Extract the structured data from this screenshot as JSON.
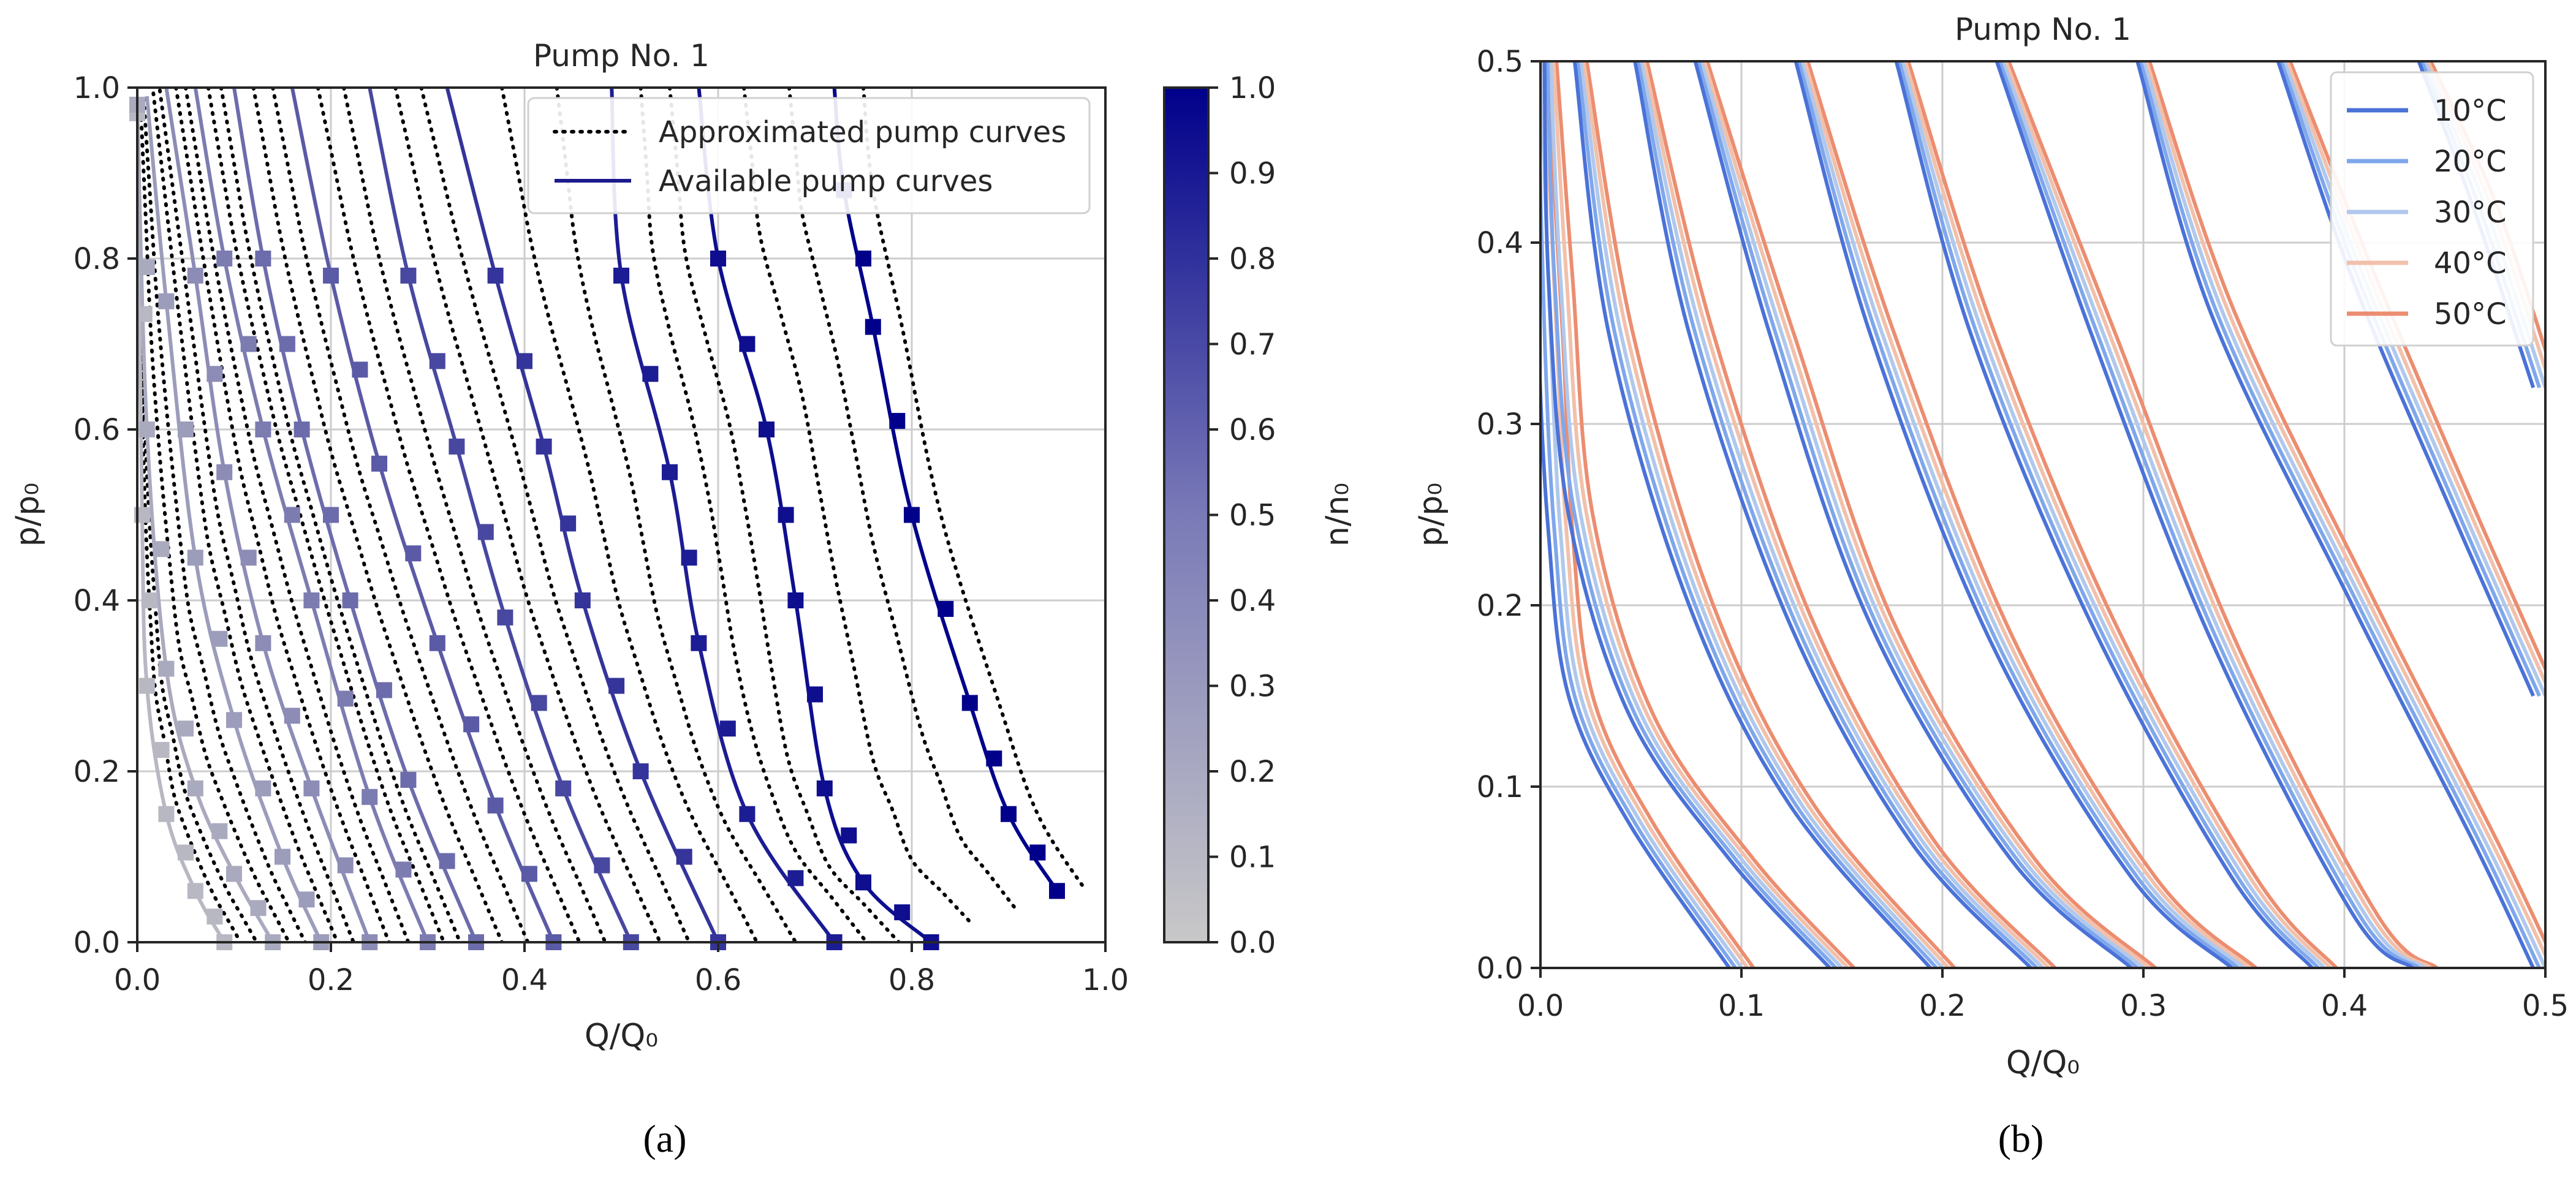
{
  "figure": {
    "panel_a_caption": "(a)",
    "panel_b_caption": "(b)"
  },
  "chart_data": [
    {
      "panel": "a",
      "type": "line",
      "title": "Pump No. 1",
      "xlabel": "Q/Q₀",
      "ylabel": "p/p₀",
      "xlim": [
        0.0,
        1.0
      ],
      "ylim": [
        0.0,
        1.0
      ],
      "xticks": [
        "0.0",
        "0.2",
        "0.4",
        "0.6",
        "0.8",
        "1.0"
      ],
      "yticks": [
        "0.0",
        "0.2",
        "0.4",
        "0.6",
        "0.8",
        "1.0"
      ],
      "grid": true,
      "legend": {
        "position": "top-right",
        "entries": [
          {
            "label": "Approximated pump curves",
            "style": "dotted",
            "color": "#000000"
          },
          {
            "label": "Available pump curves",
            "style": "solid",
            "color": "#1a1a8c"
          }
        ]
      },
      "colorbar": {
        "label": "n/n₀",
        "ticks": [
          "0.0",
          "0.1",
          "0.2",
          "0.3",
          "0.4",
          "0.5",
          "0.6",
          "0.7",
          "0.8",
          "0.9",
          "1.0"
        ],
        "range": [
          0.0,
          1.0
        ],
        "color_low": "#c8c8c8",
        "color_high": "#00008b"
      },
      "available_curves": [
        {
          "n": 0.08,
          "points": [
            [
              0.0,
              0.97
            ],
            [
              0.005,
              0.5
            ],
            [
              0.01,
              0.3
            ],
            [
              0.03,
              0.15
            ],
            [
              0.06,
              0.06
            ],
            [
              0.09,
              0.0
            ]
          ]
        },
        {
          "n": 0.15,
          "points": [
            [
              0.0,
              0.98
            ],
            [
              0.01,
              0.6
            ],
            [
              0.03,
              0.32
            ],
            [
              0.06,
              0.18
            ],
            [
              0.1,
              0.08
            ],
            [
              0.14,
              0.0
            ]
          ]
        },
        {
          "n": 0.22,
          "points": [
            [
              0.01,
              0.99
            ],
            [
              0.03,
              0.75
            ],
            [
              0.06,
              0.45
            ],
            [
              0.1,
              0.26
            ],
            [
              0.15,
              0.1
            ],
            [
              0.19,
              0.0
            ]
          ]
        },
        {
          "n": 0.3,
          "points": [
            [
              0.03,
              1.0
            ],
            [
              0.06,
              0.78
            ],
            [
              0.09,
              0.55
            ],
            [
              0.13,
              0.35
            ],
            [
              0.18,
              0.18
            ],
            [
              0.24,
              0.0
            ]
          ]
        },
        {
          "n": 0.38,
          "points": [
            [
              0.06,
              1.0
            ],
            [
              0.09,
              0.8
            ],
            [
              0.13,
              0.6
            ],
            [
              0.18,
              0.4
            ],
            [
              0.24,
              0.17
            ],
            [
              0.3,
              0.0
            ]
          ]
        },
        {
          "n": 0.46,
          "points": [
            [
              0.1,
              1.0
            ],
            [
              0.13,
              0.8
            ],
            [
              0.17,
              0.6
            ],
            [
              0.22,
              0.4
            ],
            [
              0.28,
              0.19
            ],
            [
              0.35,
              0.0
            ]
          ]
        },
        {
          "n": 0.55,
          "points": [
            [
              0.16,
              1.0
            ],
            [
              0.2,
              0.78
            ],
            [
              0.25,
              0.56
            ],
            [
              0.31,
              0.35
            ],
            [
              0.37,
              0.16
            ],
            [
              0.43,
              0.0
            ]
          ]
        },
        {
          "n": 0.64,
          "points": [
            [
              0.24,
              1.0
            ],
            [
              0.28,
              0.78
            ],
            [
              0.33,
              0.58
            ],
            [
              0.38,
              0.38
            ],
            [
              0.44,
              0.18
            ],
            [
              0.51,
              0.0
            ]
          ]
        },
        {
          "n": 0.74,
          "points": [
            [
              0.32,
              1.0
            ],
            [
              0.37,
              0.78
            ],
            [
              0.42,
              0.58
            ],
            [
              0.46,
              0.4
            ],
            [
              0.52,
              0.2
            ],
            [
              0.6,
              0.0
            ]
          ]
        },
        {
          "n": 0.86,
          "points": [
            [
              0.49,
              1.0
            ],
            [
              0.5,
              0.78
            ],
            [
              0.55,
              0.55
            ],
            [
              0.58,
              0.35
            ],
            [
              0.63,
              0.15
            ],
            [
              0.72,
              0.0
            ]
          ]
        },
        {
          "n": 0.93,
          "points": [
            [
              0.58,
              1.0
            ],
            [
              0.6,
              0.8
            ],
            [
              0.65,
              0.6
            ],
            [
              0.68,
              0.4
            ],
            [
              0.71,
              0.18
            ],
            [
              0.75,
              0.07
            ],
            [
              0.82,
              0.0
            ]
          ]
        },
        {
          "n": 1.0,
          "points": [
            [
              0.72,
              1.0
            ],
            [
              0.73,
              0.88
            ],
            [
              0.76,
              0.72
            ],
            [
              0.8,
              0.5
            ],
            [
              0.86,
              0.28
            ],
            [
              0.9,
              0.15
            ],
            [
              0.95,
              0.06
            ]
          ]
        }
      ],
      "approximated_curve_count": 26
    },
    {
      "panel": "b",
      "type": "line",
      "title": "Pump No. 1",
      "xlabel": "Q/Q₀",
      "ylabel": "p/p₀",
      "xlim": [
        0.0,
        0.5
      ],
      "ylim": [
        0.0,
        0.5
      ],
      "xticks": [
        "0.0",
        "0.1",
        "0.2",
        "0.3",
        "0.4",
        "0.5"
      ],
      "yticks": [
        "0.0",
        "0.1",
        "0.2",
        "0.3",
        "0.4",
        "0.5"
      ],
      "grid": true,
      "legend": {
        "position": "top-right",
        "entries": [
          {
            "label": "10°C",
            "color": "#4a72d8"
          },
          {
            "label": "20°C",
            "color": "#7fa7ec"
          },
          {
            "label": "30°C",
            "color": "#b0c8ec"
          },
          {
            "label": "40°C",
            "color": "#f2c0aa"
          },
          {
            "label": "50°C",
            "color": "#ec8d70"
          }
        ]
      },
      "speed_curves": [
        {
          "points": [
            [
              0.0,
              0.5
            ],
            [
              0.005,
              0.35
            ],
            [
              0.01,
              0.24
            ],
            [
              0.02,
              0.15
            ],
            [
              0.05,
              0.08
            ],
            [
              0.1,
              0.0
            ]
          ]
        },
        {
          "points": [
            [
              0.005,
              0.5
            ],
            [
              0.01,
              0.38
            ],
            [
              0.02,
              0.25
            ],
            [
              0.05,
              0.14
            ],
            [
              0.1,
              0.06
            ],
            [
              0.15,
              0.0
            ]
          ]
        },
        {
          "points": [
            [
              0.02,
              0.5
            ],
            [
              0.04,
              0.35
            ],
            [
              0.08,
              0.2
            ],
            [
              0.13,
              0.09
            ],
            [
              0.2,
              0.0
            ]
          ]
        },
        {
          "points": [
            [
              0.05,
              0.5
            ],
            [
              0.08,
              0.35
            ],
            [
              0.13,
              0.19
            ],
            [
              0.19,
              0.07
            ],
            [
              0.25,
              0.0
            ]
          ]
        },
        {
          "points": [
            [
              0.08,
              0.5
            ],
            [
              0.12,
              0.35
            ],
            [
              0.17,
              0.19
            ],
            [
              0.24,
              0.06
            ],
            [
              0.3,
              0.0
            ]
          ]
        },
        {
          "points": [
            [
              0.13,
              0.5
            ],
            [
              0.17,
              0.35
            ],
            [
              0.23,
              0.18
            ],
            [
              0.3,
              0.05
            ],
            [
              0.35,
              0.0
            ]
          ]
        },
        {
          "points": [
            [
              0.18,
              0.5
            ],
            [
              0.22,
              0.35
            ],
            [
              0.28,
              0.19
            ],
            [
              0.35,
              0.05
            ],
            [
              0.39,
              0.0
            ]
          ]
        },
        {
          "points": [
            [
              0.23,
              0.5
            ],
            [
              0.28,
              0.35
            ],
            [
              0.34,
              0.18
            ],
            [
              0.41,
              0.03
            ],
            [
              0.44,
              0.0
            ]
          ]
        },
        {
          "points": [
            [
              0.3,
              0.5
            ],
            [
              0.34,
              0.36
            ],
            [
              0.41,
              0.2
            ],
            [
              0.47,
              0.07
            ],
            [
              0.5,
              0.0
            ]
          ]
        },
        {
          "points": [
            [
              0.37,
              0.5
            ],
            [
              0.41,
              0.38
            ],
            [
              0.46,
              0.25
            ],
            [
              0.5,
              0.15
            ]
          ]
        },
        {
          "points": [
            [
              0.44,
              0.5
            ],
            [
              0.47,
              0.42
            ],
            [
              0.5,
              0.32
            ]
          ]
        }
      ],
      "temperature_shift": [
        -0.006,
        -0.003,
        0.0,
        0.003,
        0.006
      ]
    }
  ]
}
